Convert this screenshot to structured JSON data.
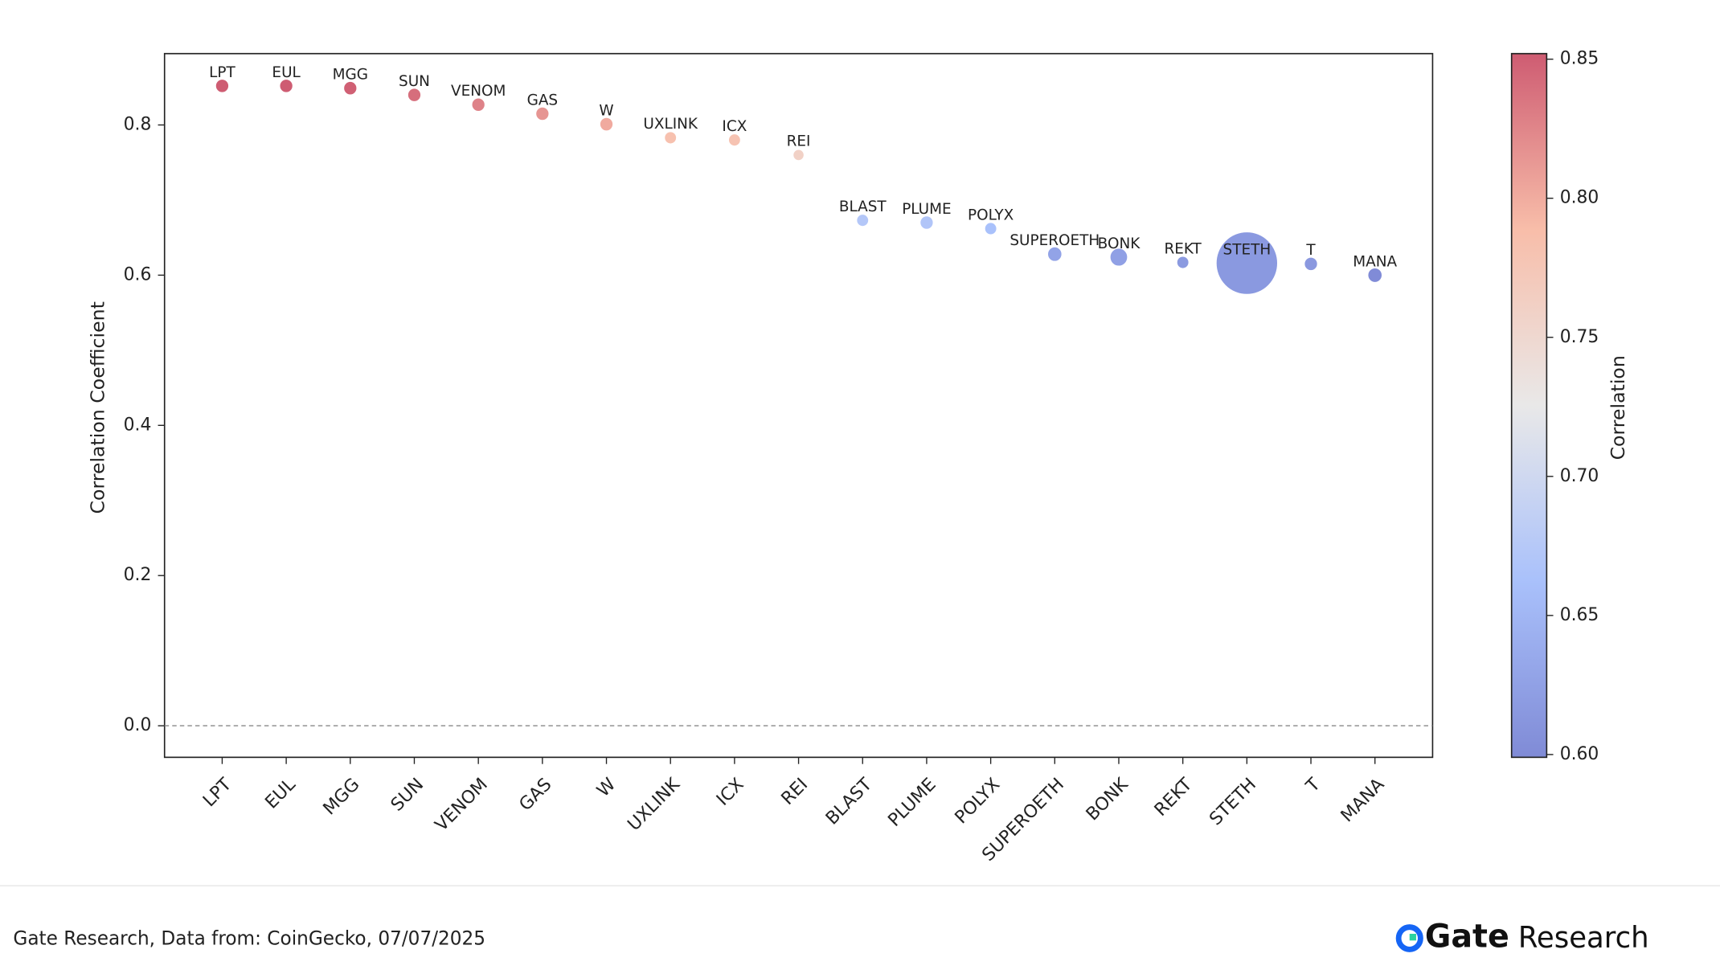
{
  "chart_data": {
    "type": "scatter",
    "ylabel": "Correlation Coefficient",
    "categories": [
      "LPT",
      "EUL",
      "MGG",
      "SUN",
      "VENOM",
      "GAS",
      "W",
      "UXLINK",
      "ICX",
      "REI",
      "BLAST",
      "PLUME",
      "POLYX",
      "SUPEROETH",
      "BONK",
      "REKT",
      "STETH",
      "T",
      "MANA"
    ],
    "values": [
      0.852,
      0.852,
      0.849,
      0.84,
      0.827,
      0.815,
      0.801,
      0.783,
      0.78,
      0.76,
      0.673,
      0.67,
      0.662,
      0.628,
      0.624,
      0.617,
      0.616,
      0.615,
      0.6
    ],
    "sizes": [
      36,
      36,
      36,
      36,
      36,
      36,
      36,
      30,
      30,
      25,
      30,
      36,
      30,
      42,
      64,
      30,
      784,
      36,
      42
    ],
    "ylim": [
      -0.042,
      0.895
    ],
    "yticks": [
      {
        "value": 0,
        "label": "0.0"
      },
      0.2,
      0.4,
      0.6,
      0.8
    ],
    "reference_line": 0,
    "colorbar": {
      "label": "Correlation",
      "clim": [
        0.599,
        0.852
      ],
      "colormap": [
        "#3b4cc0",
        "#7b9ff9",
        "#dddcdc",
        "#f49a7b",
        "#b40426"
      ],
      "ticks": [
        {
          "value": 0.6,
          "label": "0.60"
        },
        {
          "value": 0.65,
          "label": "0.65"
        },
        {
          "value": 0.7,
          "label": "0.70"
        },
        {
          "value": 0.75,
          "label": "0.75"
        },
        {
          "value": 0.8,
          "label": "0.80"
        },
        {
          "value": 0.85,
          "label": "0.85"
        }
      ]
    }
  },
  "footer": {
    "source": "Gate Research, Data from: CoinGecko, 07/07/2025",
    "logo": "Gate",
    "logo_suffix": "Research"
  }
}
